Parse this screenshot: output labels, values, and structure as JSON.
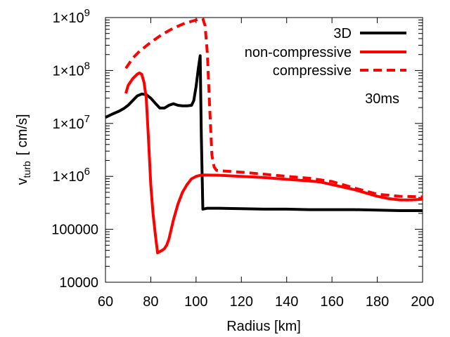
{
  "chart_data": {
    "type": "line",
    "xlabel": "Radius [km]",
    "ylabel": "v",
    "ylabel_sub": "turb",
    "ylabel_unit": "[ cm/s]",
    "annotation": "30ms",
    "xlim": [
      60,
      200
    ],
    "ylim": [
      10000,
      1000000000
    ],
    "yscale": "log",
    "x_ticks": [
      60,
      80,
      100,
      120,
      140,
      160,
      180,
      200
    ],
    "y_ticks": [
      {
        "value": 10000,
        "mantissa": "10000",
        "exp": ""
      },
      {
        "value": 100000,
        "mantissa": "100000",
        "exp": ""
      },
      {
        "value": 1000000,
        "mantissa": "1×10",
        "exp": "6"
      },
      {
        "value": 10000000,
        "mantissa": "1×10",
        "exp": "7"
      },
      {
        "value": 100000000,
        "mantissa": "1×10",
        "exp": "8"
      },
      {
        "value": 1000000000,
        "mantissa": "1×10",
        "exp": "9"
      }
    ],
    "legend_position": "top-right",
    "series": [
      {
        "name": "3D",
        "color": "#000000",
        "dash": "solid",
        "x": [
          60,
          63,
          66,
          68,
          70,
          72,
          74,
          76,
          78,
          80,
          82,
          84,
          86,
          88,
          90,
          92,
          94,
          96,
          98,
          99,
          100,
          101,
          101.8,
          102.3,
          103,
          105,
          110,
          120,
          130,
          140,
          150,
          160,
          170,
          180,
          190,
          200
        ],
        "y": [
          13000000,
          15000000,
          17000000,
          19000000,
          22000000,
          27000000,
          33000000,
          36000000,
          35000000,
          30000000,
          24000000,
          19500000,
          19500000,
          22000000,
          23500000,
          22000000,
          21500000,
          21500000,
          22000000,
          27000000,
          50000000,
          110000000,
          190000000,
          6000000,
          240000,
          250000,
          250000,
          245000,
          240000,
          240000,
          235000,
          235000,
          235000,
          230000,
          225000,
          225000
        ]
      },
      {
        "name": "non-compressive",
        "color": "#ff0000",
        "dash": "solid",
        "x": [
          69,
          70,
          72,
          74,
          75,
          76,
          77,
          78,
          79,
          80,
          81,
          82,
          83,
          84,
          85,
          86,
          87,
          88,
          90,
          92,
          94,
          96,
          98,
          100,
          102,
          104,
          110,
          120,
          130,
          140,
          150,
          155,
          160,
          170,
          180,
          185,
          190,
          195,
          200
        ],
        "y": [
          37000000,
          52000000,
          70000000,
          85000000,
          90000000,
          85000000,
          60000000,
          30000000,
          5000000,
          700000,
          200000,
          80000,
          36000,
          38000,
          40000,
          43000,
          50000,
          65000,
          150000,
          300000,
          500000,
          700000,
          900000,
          1000000,
          1050000,
          1060000,
          1050000,
          1000000,
          950000,
          880000,
          820000,
          780000,
          700000,
          560000,
          420000,
          380000,
          360000,
          360000,
          370000
        ]
      },
      {
        "name": "compressive",
        "color": "#ff0000",
        "dash": "dashed",
        "x": [
          69,
          72,
          75,
          80,
          85,
          90,
          95,
          100,
          102,
          103,
          104,
          105,
          106,
          107,
          108,
          109,
          110,
          120,
          130,
          140,
          150,
          160,
          170,
          180,
          190,
          200
        ],
        "y": [
          110000000,
          170000000,
          230000000,
          340000000,
          480000000,
          630000000,
          780000000,
          900000000,
          950000000,
          950000000,
          700000000,
          200000000,
          20000000,
          2500000,
          1500000,
          1300000,
          1280000,
          1200000,
          1100000,
          1000000,
          920000,
          800000,
          600000,
          460000,
          420000,
          410000
        ]
      }
    ]
  }
}
